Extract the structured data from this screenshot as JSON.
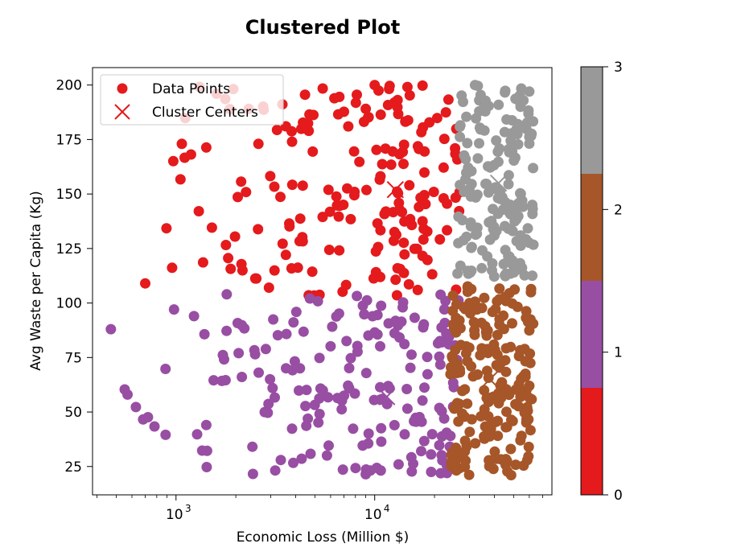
{
  "chart_data": {
    "type": "scatter",
    "title": "Clustered Plot",
    "xlabel": "Economic Loss (Million $)",
    "ylabel": "Avg Waste per Capita (Kg)",
    "xscale": "log",
    "xlim": [
      380,
      78000
    ],
    "ylim": [
      12,
      208
    ],
    "x_ticks": [
      {
        "value": 1000,
        "label": "10",
        "exp": "3"
      },
      {
        "value": 10000,
        "label": "10",
        "exp": "4"
      }
    ],
    "y_ticks": [
      25,
      50,
      75,
      100,
      125,
      150,
      175,
      200
    ],
    "legend": {
      "position": "top-left",
      "entries": [
        {
          "label": "Data Points",
          "marker": "circle",
          "color": "#e41a1c"
        },
        {
          "label": "Cluster Centers",
          "marker": "x",
          "color": "#e41a1c"
        }
      ]
    },
    "colorbar": {
      "ticks": [
        "0",
        "1",
        "2",
        "3"
      ],
      "colors": [
        "#e41a1c",
        "#984ea3",
        "#a65628",
        "#999999"
      ]
    },
    "cluster_colors": [
      "#e41a1c",
      "#984ea3",
      "#a65628",
      "#999999"
    ],
    "cluster_centers": [
      {
        "cluster": 0,
        "x": 12700,
        "y": 152
      },
      {
        "cluster": 1,
        "x": 11500,
        "y": 57
      },
      {
        "cluster": 2,
        "x": 38000,
        "y": 65
      },
      {
        "cluster": 3,
        "x": 42000,
        "y": 155
      }
    ],
    "point_counts": {
      "cluster_0": 190,
      "cluster_1": 190,
      "cluster_2": 200,
      "cluster_3": 170
    },
    "sample_points": [
      {
        "cluster": 0,
        "x": 700,
        "y": 109
      },
      {
        "cluster": 0,
        "x": 1070,
        "y": 173
      },
      {
        "cluster": 0,
        "x": 1600,
        "y": 196
      },
      {
        "cluster": 0,
        "x": 2600,
        "y": 173
      },
      {
        "cluster": 0,
        "x": 10000,
        "y": 200
      },
      {
        "cluster": 1,
        "x": 470,
        "y": 88
      },
      {
        "cluster": 1,
        "x": 570,
        "y": 58
      },
      {
        "cluster": 1,
        "x": 1800,
        "y": 104
      },
      {
        "cluster": 2,
        "x": 30000,
        "y": 100
      },
      {
        "cluster": 2,
        "x": 60000,
        "y": 62
      },
      {
        "cluster": 3,
        "x": 32000,
        "y": 200
      },
      {
        "cluster": 3,
        "x": 60000,
        "y": 197
      }
    ]
  }
}
